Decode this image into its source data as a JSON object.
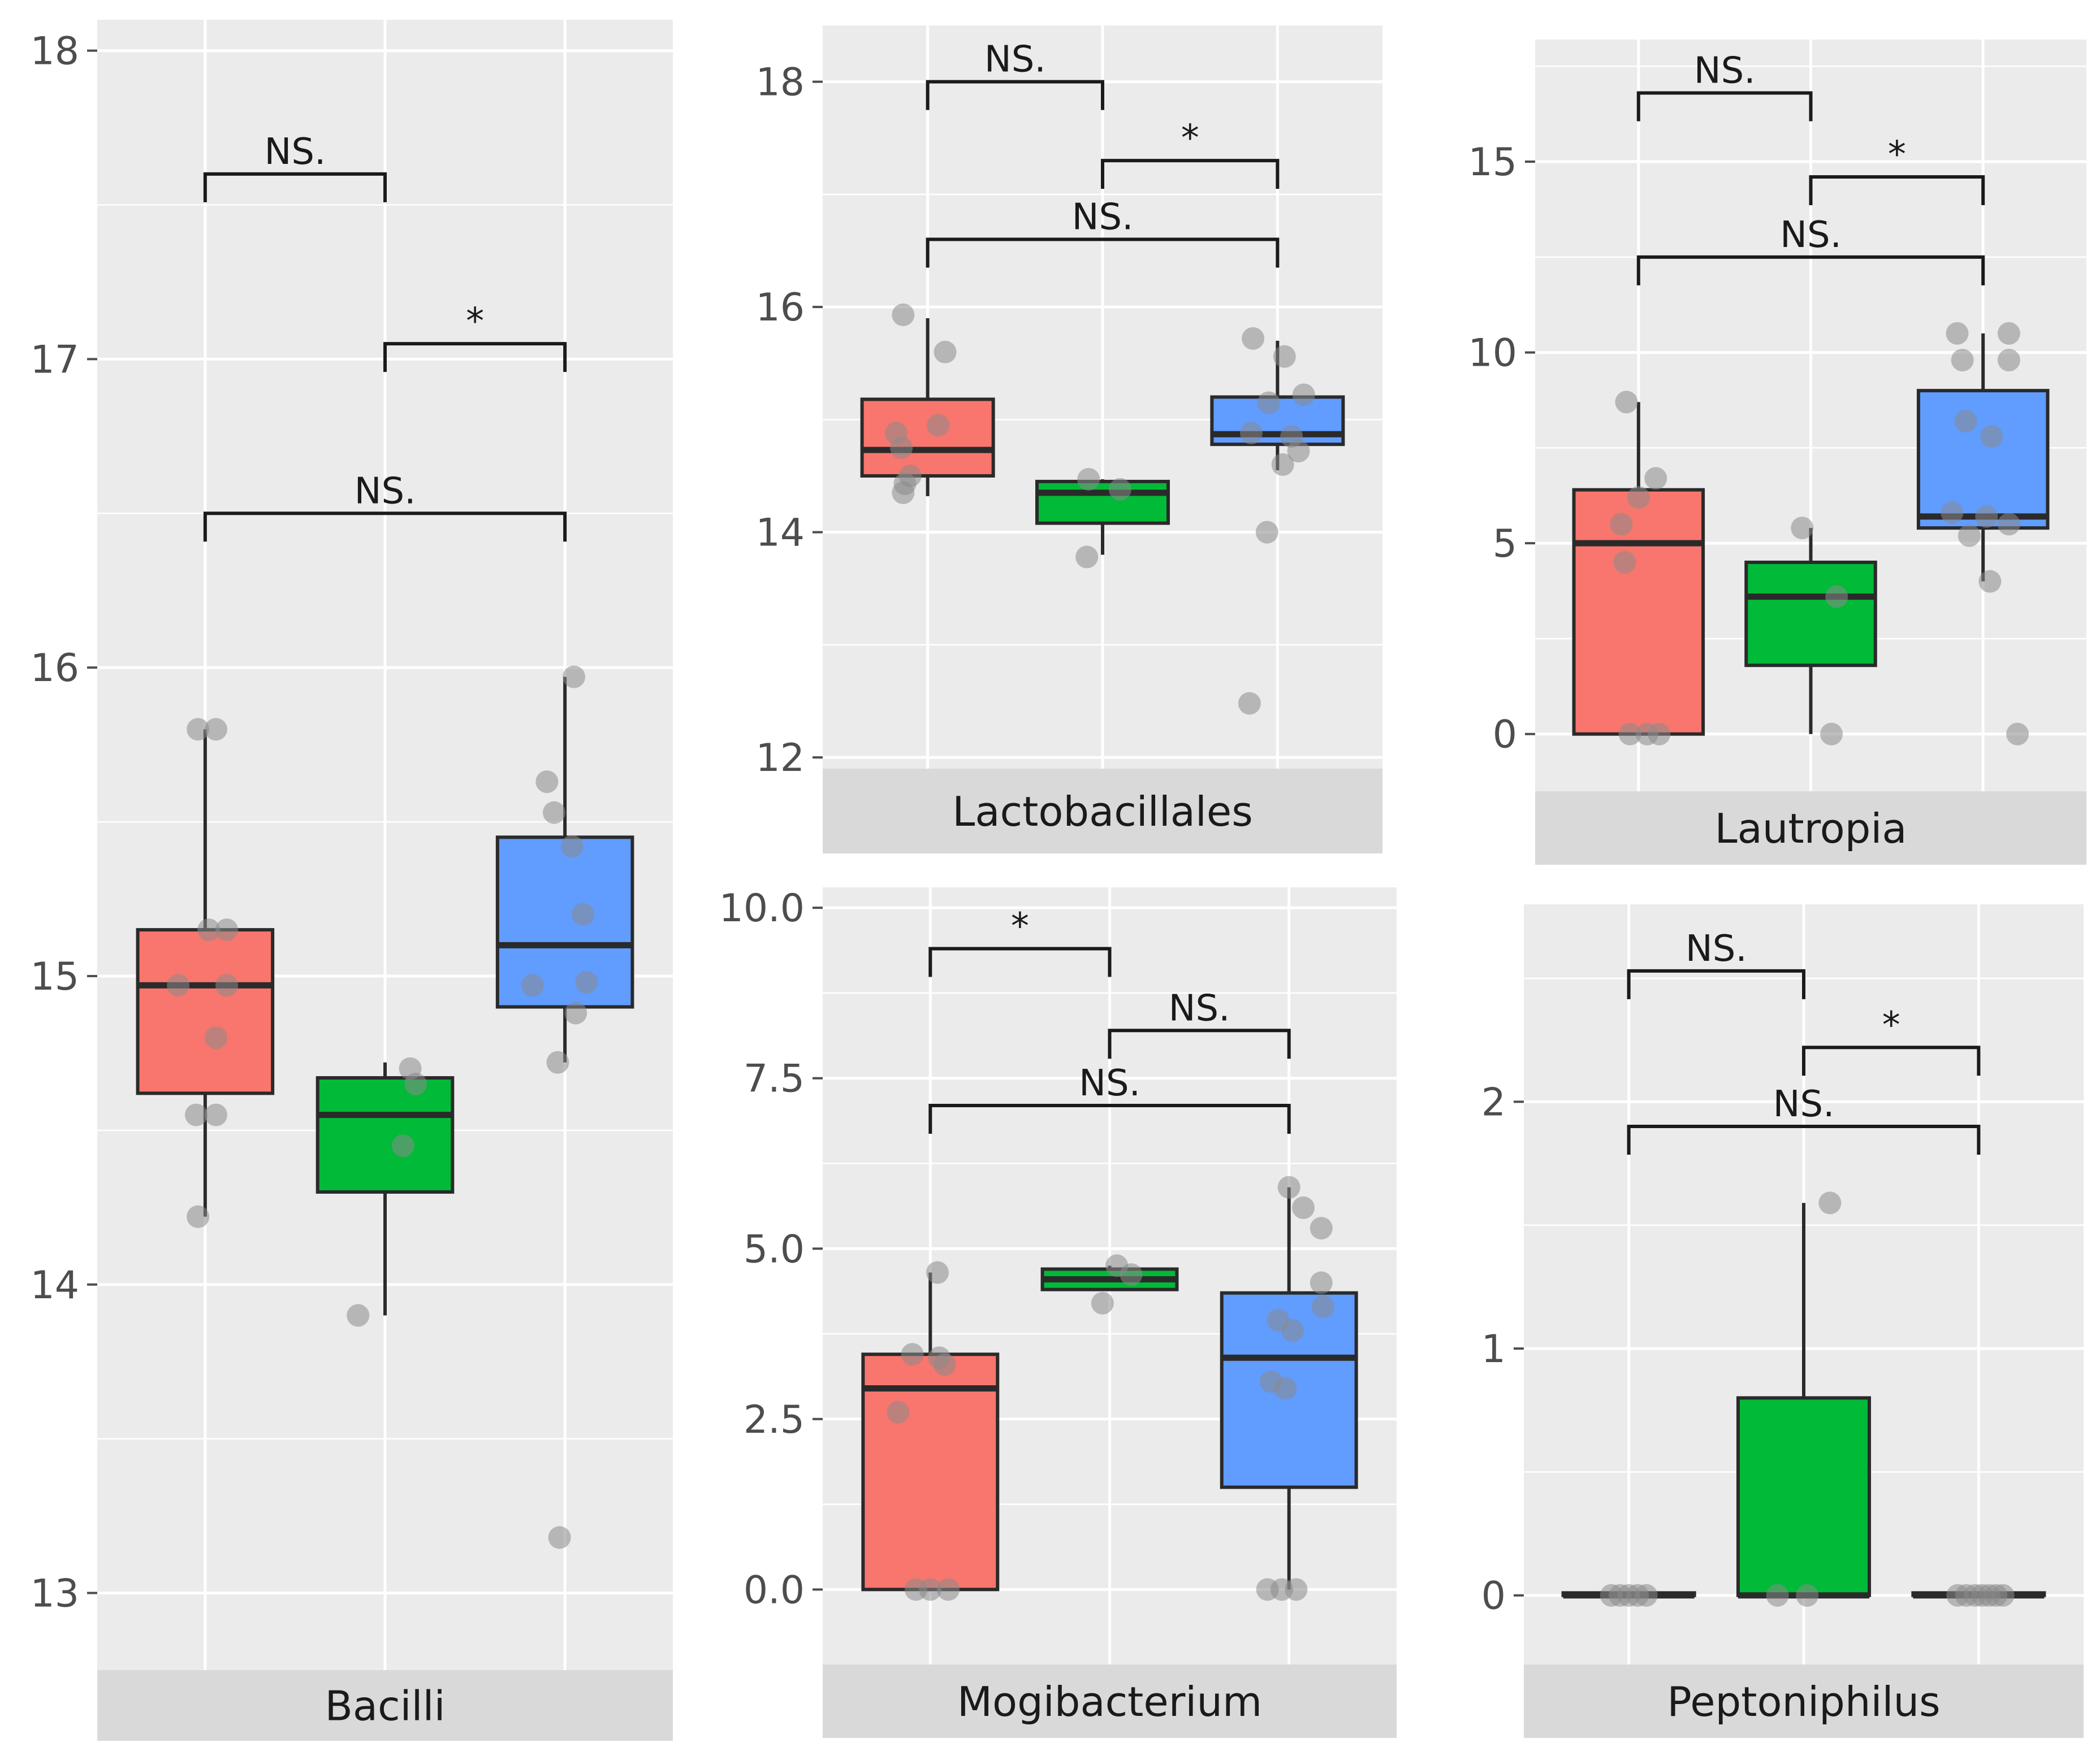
{
  "colors": {
    "group1": "#f8766d",
    "group2": "#00ba38",
    "group3": "#619cff"
  },
  "chart_data": [
    {
      "type": "box",
      "title": "Bacilli",
      "ylim": [
        12.75,
        18.1
      ],
      "yticks": [
        13,
        14,
        15,
        16,
        17,
        18
      ],
      "ytick_labels": [
        "13",
        "14",
        "15",
        "16",
        "17",
        "18"
      ],
      "groups": [
        {
          "q1": 14.62,
          "median": 14.97,
          "q3": 15.15,
          "wlow": 14.22,
          "whigh": 15.8,
          "points": [
            [
              -0.04,
              15.8
            ],
            [
              0.06,
              15.8
            ],
            [
              0.02,
              15.15
            ],
            [
              0.12,
              15.15
            ],
            [
              -0.15,
              14.97
            ],
            [
              0.12,
              14.97
            ],
            [
              0.06,
              14.8
            ],
            [
              -0.05,
              14.55
            ],
            [
              0.06,
              14.55
            ],
            [
              -0.04,
              14.22
            ]
          ]
        },
        {
          "q1": 14.3,
          "median": 14.55,
          "q3": 14.67,
          "wlow": 13.9,
          "whigh": 14.72,
          "points": [
            [
              0.14,
              14.7
            ],
            [
              0.17,
              14.65
            ],
            [
              0.1,
              14.45
            ],
            [
              -0.15,
              13.9
            ]
          ]
        },
        {
          "q1": 14.9,
          "median": 15.1,
          "q3": 15.45,
          "wlow": 14.72,
          "whigh": 15.97,
          "points": [
            [
              0.05,
              15.97
            ],
            [
              -0.1,
              15.63
            ],
            [
              -0.06,
              15.53
            ],
            [
              0.04,
              15.42
            ],
            [
              0.1,
              15.2
            ],
            [
              -0.18,
              14.97
            ],
            [
              0.12,
              14.98
            ],
            [
              0.06,
              14.88
            ],
            [
              -0.04,
              14.72
            ],
            [
              -0.03,
              13.18
            ]
          ]
        }
      ],
      "comparisons": [
        {
          "from": 1,
          "to": 2,
          "y": 17.6,
          "label": "NS."
        },
        {
          "from": 2,
          "to": 3,
          "y": 17.05,
          "label": "*"
        },
        {
          "from": 1,
          "to": 3,
          "y": 16.5,
          "label": "NS."
        }
      ]
    },
    {
      "type": "box",
      "title": "Lactobacillales",
      "ylim": [
        11.9,
        18.5
      ],
      "yticks": [
        12,
        14,
        16,
        18
      ],
      "ytick_labels": [
        "12",
        "14",
        "16",
        "18"
      ],
      "groups": [
        {
          "q1": 14.5,
          "median": 14.73,
          "q3": 15.18,
          "wlow": 14.32,
          "whigh": 15.9,
          "points": [
            [
              -0.14,
              15.93
            ],
            [
              0.1,
              15.6
            ],
            [
              -0.18,
              14.88
            ],
            [
              -0.15,
              14.75
            ],
            [
              0.06,
              14.95
            ],
            [
              -0.1,
              14.5
            ],
            [
              -0.13,
              14.43
            ],
            [
              -0.14,
              14.35
            ]
          ]
        },
        {
          "q1": 14.08,
          "median": 14.35,
          "q3": 14.45,
          "wlow": 13.8,
          "whigh": 14.47,
          "points": [
            [
              -0.08,
              14.47
            ],
            [
              0.1,
              14.38
            ],
            [
              -0.09,
              13.78
            ]
          ]
        },
        {
          "q1": 14.78,
          "median": 14.87,
          "q3": 15.2,
          "wlow": 14.55,
          "whigh": 15.7,
          "points": [
            [
              -0.14,
              15.72
            ],
            [
              0.04,
              15.56
            ],
            [
              0.15,
              15.22
            ],
            [
              -0.05,
              15.15
            ],
            [
              -0.15,
              14.88
            ],
            [
              0.08,
              14.85
            ],
            [
              0.12,
              14.72
            ],
            [
              0.03,
              14.6
            ],
            [
              -0.06,
              14.0
            ],
            [
              -0.16,
              12.48
            ]
          ]
        }
      ],
      "comparisons": [
        {
          "from": 1,
          "to": 2,
          "y": 18.0,
          "label": "NS."
        },
        {
          "from": 2,
          "to": 3,
          "y": 17.3,
          "label": "*"
        },
        {
          "from": 1,
          "to": 3,
          "y": 16.6,
          "label": "NS."
        }
      ]
    },
    {
      "type": "box",
      "title": "Lautropia",
      "ylim": [
        -1.5,
        18.2
      ],
      "yticks": [
        0,
        5,
        10,
        15
      ],
      "ytick_labels": [
        "0",
        "5",
        "10",
        "15"
      ],
      "groups": [
        {
          "q1": 0,
          "median": 5.0,
          "q3": 6.4,
          "wlow": 0,
          "whigh": 8.7,
          "points": [
            [
              -0.07,
              8.7
            ],
            [
              0.1,
              6.7
            ],
            [
              0.0,
              6.2
            ],
            [
              -0.1,
              5.5
            ],
            [
              -0.08,
              4.5
            ],
            [
              -0.05,
              0
            ],
            [
              0.05,
              0
            ],
            [
              0.12,
              0
            ]
          ]
        },
        {
          "q1": 1.8,
          "median": 3.6,
          "q3": 4.5,
          "wlow": 0,
          "whigh": 5.4,
          "points": [
            [
              -0.05,
              5.4
            ],
            [
              0.15,
              3.6
            ],
            [
              0.12,
              0
            ]
          ]
        },
        {
          "q1": 5.4,
          "median": 5.7,
          "q3": 9.0,
          "wlow": 4.0,
          "whigh": 10.5,
          "points": [
            [
              -0.15,
              10.5
            ],
            [
              0.15,
              10.5
            ],
            [
              -0.12,
              9.8
            ],
            [
              0.15,
              9.8
            ],
            [
              -0.1,
              8.2
            ],
            [
              0.05,
              7.8
            ],
            [
              -0.18,
              5.8
            ],
            [
              0.02,
              5.7
            ],
            [
              0.15,
              5.5
            ],
            [
              -0.08,
              5.2
            ],
            [
              0.04,
              4.0
            ],
            [
              0.2,
              0
            ]
          ]
        }
      ],
      "comparisons": [
        {
          "from": 1,
          "to": 2,
          "y": 16.8,
          "label": "NS."
        },
        {
          "from": 2,
          "to": 3,
          "y": 14.6,
          "label": "*"
        },
        {
          "from": 1,
          "to": 3,
          "y": 12.5,
          "label": "NS."
        }
      ]
    },
    {
      "type": "box",
      "title": "Mogibacterium",
      "ylim": [
        -1.1,
        10.3
      ],
      "yticks": [
        0,
        2.5,
        5,
        7.5,
        10
      ],
      "ytick_labels": [
        "0.0",
        "2.5",
        "5.0",
        "7.5",
        "10.0"
      ],
      "groups": [
        {
          "q1": 0,
          "median": 2.95,
          "q3": 3.45,
          "wlow": 0,
          "whigh": 4.65,
          "points": [
            [
              0.04,
              4.65
            ],
            [
              -0.1,
              3.45
            ],
            [
              0.05,
              3.4
            ],
            [
              0.08,
              3.3
            ],
            [
              -0.18,
              2.6
            ],
            [
              -0.08,
              0
            ],
            [
              0.0,
              0
            ],
            [
              0.1,
              0
            ]
          ]
        },
        {
          "q1": 4.4,
          "median": 4.55,
          "q3": 4.7,
          "wlow": 4.4,
          "whigh": 4.75,
          "points": [
            [
              0.04,
              4.75
            ],
            [
              0.12,
              4.62
            ],
            [
              -0.04,
              4.2
            ]
          ]
        },
        {
          "q1": 1.5,
          "median": 3.4,
          "q3": 4.35,
          "wlow": 0,
          "whigh": 5.9,
          "points": [
            [
              0.0,
              5.9
            ],
            [
              0.08,
              5.6
            ],
            [
              0.18,
              5.3
            ],
            [
              0.18,
              4.5
            ],
            [
              0.19,
              4.15
            ],
            [
              -0.06,
              3.95
            ],
            [
              0.02,
              3.8
            ],
            [
              -0.1,
              3.05
            ],
            [
              -0.02,
              2.95
            ],
            [
              -0.12,
              0
            ],
            [
              -0.04,
              0
            ],
            [
              0.04,
              0
            ]
          ]
        }
      ],
      "comparisons": [
        {
          "from": 1,
          "to": 2,
          "y": 9.4,
          "label": "*"
        },
        {
          "from": 2,
          "to": 3,
          "y": 8.2,
          "label": "NS."
        },
        {
          "from": 1,
          "to": 3,
          "y": 7.1,
          "label": "NS."
        }
      ]
    },
    {
      "type": "box",
      "title": "Peptoniphilus",
      "ylim": [
        -0.28,
        2.8
      ],
      "yticks": [
        0,
        1,
        2
      ],
      "ytick_labels": [
        "0",
        "1",
        "2"
      ],
      "groups": [
        {
          "q1": 0,
          "median": 0,
          "q3": 0.01,
          "wlow": 0,
          "whigh": 0,
          "points": [
            [
              -0.1,
              0
            ],
            [
              -0.05,
              0
            ],
            [
              0.0,
              0
            ],
            [
              0.05,
              0
            ],
            [
              0.1,
              0
            ]
          ]
        },
        {
          "q1": 0,
          "median": 0,
          "q3": 0.8,
          "wlow": 0,
          "whigh": 1.59,
          "points": [
            [
              0.15,
              1.59
            ],
            [
              -0.15,
              0
            ],
            [
              0.02,
              0
            ]
          ]
        },
        {
          "q1": 0,
          "median": 0,
          "q3": 0.01,
          "wlow": 0,
          "whigh": 0,
          "points": [
            [
              -0.12,
              0
            ],
            [
              -0.07,
              0
            ],
            [
              -0.02,
              0
            ],
            [
              0.02,
              0
            ],
            [
              0.06,
              0
            ],
            [
              0.1,
              0
            ],
            [
              0.14,
              0
            ]
          ]
        }
      ],
      "comparisons": [
        {
          "from": 1,
          "to": 2,
          "y": 2.53,
          "label": "NS."
        },
        {
          "from": 2,
          "to": 3,
          "y": 2.22,
          "label": "*"
        },
        {
          "from": 1,
          "to": 3,
          "y": 1.9,
          "label": "NS."
        }
      ]
    }
  ]
}
